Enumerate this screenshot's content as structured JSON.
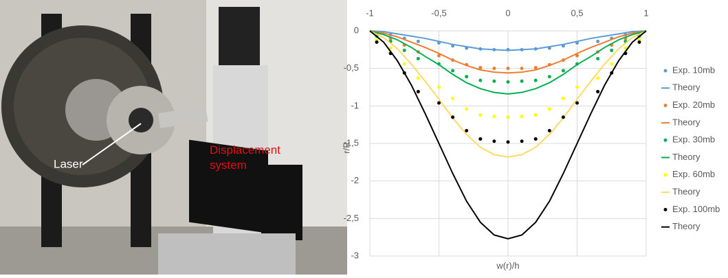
{
  "photo": {
    "annotations": [
      "Laser",
      "Displacement system"
    ]
  },
  "chart_data": {
    "type": "line",
    "x_label": "w(r)/h",
    "y_label": "r/R",
    "xlim": [
      -1,
      1
    ],
    "xticks": [
      -1,
      {
        "value": -0.5,
        "label": "-0,5"
      },
      0,
      {
        "value": 0.5,
        "label": "0,5"
      },
      1
    ],
    "ylim": [
      0,
      -3
    ],
    "yticks": [
      0,
      {
        "value": -0.5,
        "label": "-0,5"
      },
      -1,
      {
        "value": -1.5,
        "label": "-1,5"
      },
      -2,
      {
        "value": -2.5,
        "label": "-2,5"
      },
      -3
    ],
    "grid": true,
    "series": [
      {
        "name": "Exp. 10mb",
        "style": "markers",
        "color": "#5b9bd5",
        "x": [
          -0.95,
          -0.85,
          -0.75,
          -0.65,
          -0.5,
          -0.4,
          -0.3,
          -0.2,
          -0.1,
          0,
          0.1,
          0.2,
          0.3,
          0.4,
          0.5,
          0.65,
          0.75,
          0.85,
          0.95
        ],
        "values": [
          -0.03,
          -0.05,
          -0.1,
          -0.14,
          -0.16,
          -0.2,
          -0.23,
          -0.24,
          -0.25,
          -0.25,
          -0.25,
          -0.24,
          -0.23,
          -0.2,
          -0.16,
          -0.14,
          -0.1,
          -0.05,
          -0.03
        ]
      },
      {
        "name": "Theory",
        "style": "line",
        "color": "#5b9bd5",
        "x": [
          -1,
          -0.9,
          -0.8,
          -0.7,
          -0.6,
          -0.5,
          -0.4,
          -0.3,
          -0.2,
          -0.1,
          0,
          0.1,
          0.2,
          0.3,
          0.4,
          0.5,
          0.6,
          0.7,
          0.8,
          0.9,
          1
        ],
        "values": [
          0,
          -0.01,
          -0.04,
          -0.07,
          -0.1,
          -0.14,
          -0.18,
          -0.21,
          -0.24,
          -0.25,
          -0.26,
          -0.25,
          -0.24,
          -0.21,
          -0.18,
          -0.14,
          -0.1,
          -0.07,
          -0.04,
          -0.01,
          0
        ]
      },
      {
        "name": "Exp. 20mb",
        "style": "markers",
        "color": "#ed7d31",
        "x": [
          -0.95,
          -0.85,
          -0.75,
          -0.65,
          -0.5,
          -0.4,
          -0.3,
          -0.2,
          -0.1,
          0,
          0.1,
          0.2,
          0.3,
          0.4,
          0.5,
          0.65,
          0.75,
          0.85,
          0.95
        ],
        "values": [
          -0.05,
          -0.1,
          -0.19,
          -0.28,
          -0.33,
          -0.39,
          -0.45,
          -0.49,
          -0.5,
          -0.5,
          -0.5,
          -0.49,
          -0.45,
          -0.39,
          -0.33,
          -0.28,
          -0.19,
          -0.1,
          -0.05
        ]
      },
      {
        "name": "Theory",
        "style": "line",
        "color": "#ed7d31",
        "x": [
          -1,
          -0.9,
          -0.8,
          -0.7,
          -0.6,
          -0.5,
          -0.4,
          -0.3,
          -0.2,
          -0.1,
          0,
          0.1,
          0.2,
          0.3,
          0.4,
          0.5,
          0.6,
          0.7,
          0.8,
          0.9,
          1
        ],
        "values": [
          0,
          -0.03,
          -0.08,
          -0.15,
          -0.22,
          -0.3,
          -0.39,
          -0.46,
          -0.52,
          -0.55,
          -0.56,
          -0.55,
          -0.52,
          -0.46,
          -0.39,
          -0.3,
          -0.22,
          -0.15,
          -0.08,
          -0.03,
          0
        ]
      },
      {
        "name": "Exp. 30mb",
        "style": "markers",
        "color": "#00b050",
        "x": [
          -0.95,
          -0.85,
          -0.75,
          -0.65,
          -0.5,
          -0.4,
          -0.3,
          -0.2,
          -0.1,
          0,
          0.1,
          0.2,
          0.3,
          0.4,
          0.5,
          0.65,
          0.75,
          0.85,
          0.95
        ],
        "values": [
          -0.07,
          -0.14,
          -0.26,
          -0.37,
          -0.44,
          -0.53,
          -0.61,
          -0.66,
          -0.67,
          -0.68,
          -0.67,
          -0.66,
          -0.61,
          -0.53,
          -0.44,
          -0.37,
          -0.26,
          -0.14,
          -0.07
        ]
      },
      {
        "name": "Theory",
        "style": "line",
        "color": "#00b050",
        "x": [
          -1,
          -0.9,
          -0.8,
          -0.7,
          -0.6,
          -0.5,
          -0.4,
          -0.3,
          -0.2,
          -0.1,
          0,
          0.1,
          0.2,
          0.3,
          0.4,
          0.5,
          0.6,
          0.7,
          0.8,
          0.9,
          1
        ],
        "values": [
          0,
          -0.05,
          -0.12,
          -0.22,
          -0.34,
          -0.45,
          -0.58,
          -0.69,
          -0.77,
          -0.82,
          -0.84,
          -0.82,
          -0.77,
          -0.69,
          -0.58,
          -0.45,
          -0.34,
          -0.22,
          -0.12,
          -0.05,
          0
        ]
      },
      {
        "name": "Exp. 60mb",
        "style": "markers",
        "color": "#ffff00",
        "x": [
          -0.95,
          -0.85,
          -0.75,
          -0.65,
          -0.5,
          -0.4,
          -0.3,
          -0.2,
          -0.1,
          0,
          0.1,
          0.2,
          0.3,
          0.4,
          0.5,
          0.65,
          0.75,
          0.85,
          0.95
        ],
        "values": [
          -0.12,
          -0.23,
          -0.44,
          -0.63,
          -0.75,
          -0.9,
          -1.04,
          -1.12,
          -1.14,
          -1.15,
          -1.14,
          -1.12,
          -1.04,
          -0.9,
          -0.75,
          -0.63,
          -0.44,
          -0.23,
          -0.12
        ]
      },
      {
        "name": "Theory",
        "style": "line",
        "color": "#ffd966",
        "x": [
          -1,
          -0.9,
          -0.8,
          -0.7,
          -0.6,
          -0.5,
          -0.4,
          -0.3,
          -0.2,
          -0.1,
          0,
          0.1,
          0.2,
          0.3,
          0.4,
          0.5,
          0.6,
          0.7,
          0.8,
          0.9,
          1
        ],
        "values": [
          0,
          -0.09,
          -0.24,
          -0.44,
          -0.67,
          -0.91,
          -1.16,
          -1.38,
          -1.55,
          -1.65,
          -1.68,
          -1.65,
          -1.55,
          -1.38,
          -1.16,
          -0.91,
          -0.67,
          -0.44,
          -0.24,
          -0.09,
          0
        ]
      },
      {
        "name": "Exp. 100mb",
        "style": "markers",
        "color": "#000000",
        "x": [
          -0.95,
          -0.85,
          -0.75,
          -0.65,
          -0.5,
          -0.4,
          -0.3,
          -0.2,
          -0.1,
          0,
          0.1,
          0.2,
          0.3,
          0.4,
          0.5,
          0.65,
          0.75,
          0.85,
          0.95
        ],
        "values": [
          -0.15,
          -0.3,
          -0.56,
          -0.81,
          -0.96,
          -1.15,
          -1.33,
          -1.44,
          -1.47,
          -1.48,
          -1.47,
          -1.44,
          -1.33,
          -1.15,
          -0.96,
          -0.81,
          -0.56,
          -0.3,
          -0.15
        ]
      },
      {
        "name": "Theory",
        "style": "line",
        "color": "#000000",
        "x": [
          -1,
          -0.9,
          -0.8,
          -0.7,
          -0.6,
          -0.5,
          -0.4,
          -0.3,
          -0.2,
          -0.1,
          0,
          0.1,
          0.2,
          0.3,
          0.4,
          0.5,
          0.6,
          0.7,
          0.8,
          0.9,
          1
        ],
        "values": [
          0,
          -0.15,
          -0.4,
          -0.72,
          -1.1,
          -1.5,
          -1.9,
          -2.27,
          -2.55,
          -2.72,
          -2.77,
          -2.72,
          -2.55,
          -2.27,
          -1.9,
          -1.5,
          -1.1,
          -0.72,
          -0.4,
          -0.15,
          0
        ]
      }
    ]
  }
}
